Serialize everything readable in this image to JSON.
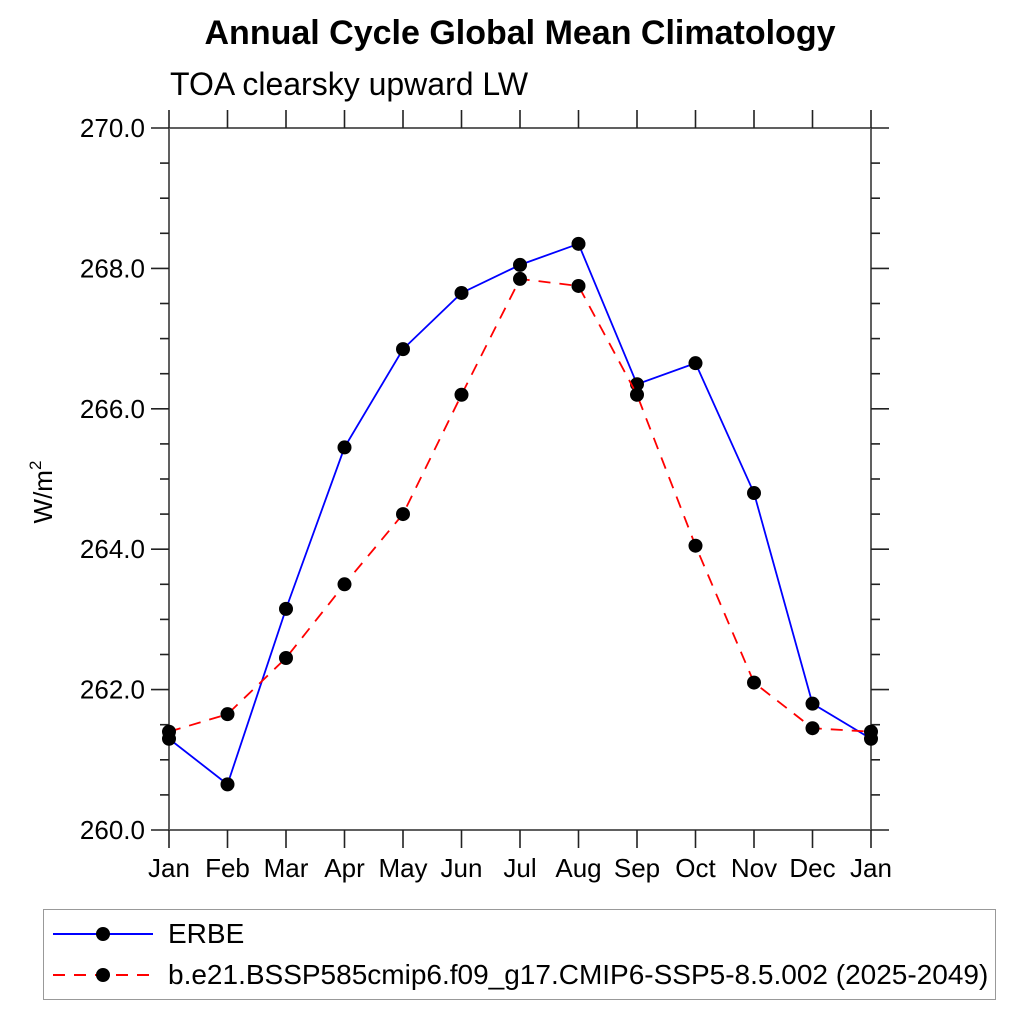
{
  "title": "Annual Cycle Global Mean Climatology",
  "subtitle": "TOA clearsky upward LW",
  "chart_data": {
    "type": "line",
    "x_categories": [
      "Jan",
      "Feb",
      "Mar",
      "Apr",
      "May",
      "Jun",
      "Jul",
      "Aug",
      "Sep",
      "Oct",
      "Nov",
      "Dec",
      "Jan"
    ],
    "ylabel": "W/m²",
    "ylim": [
      260.0,
      270.0
    ],
    "ytick_major_step": 2.0,
    "ytick_minor_step": 0.5,
    "ytick_labels": [
      "260.0",
      "262.0",
      "264.0",
      "266.0",
      "268.0",
      "270.0"
    ],
    "grid": "off",
    "legend_position": "bottom-box",
    "marker": "black-dot",
    "marker_color": "#000000",
    "axis_color": "#606060",
    "tick_color": "#222222",
    "series": [
      {
        "name": "ERBE",
        "color": "#0000ff",
        "style": "solid",
        "values": [
          261.3,
          260.65,
          263.15,
          265.45,
          266.85,
          267.65,
          268.05,
          268.35,
          266.35,
          266.65,
          264.8,
          261.8,
          261.3
        ]
      },
      {
        "name": "b.e21.BSSP585cmip6.f09_g17.CMIP6-SSP5-8.5.002 (2025-2049)",
        "color": "#ff0000",
        "style": "dashed",
        "values": [
          261.4,
          261.65,
          262.45,
          263.5,
          264.5,
          266.2,
          267.85,
          267.75,
          266.2,
          264.05,
          262.1,
          261.45,
          261.4
        ]
      }
    ]
  }
}
